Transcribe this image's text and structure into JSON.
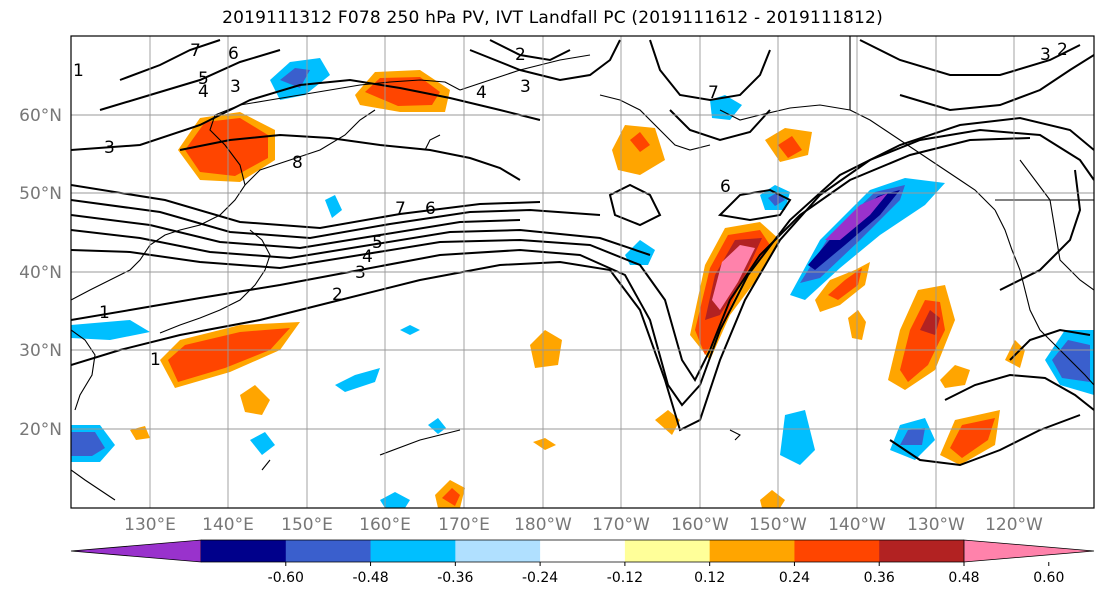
{
  "title": "2019111312 F078 250 hPa PV, IVT Landfall PC (2019111612 - 2019111812)",
  "map": {
    "lat_labels": [
      "60°N",
      "50°N",
      "40°N",
      "30°N",
      "20°N"
    ],
    "lon_labels": [
      "130°E",
      "140°E",
      "150°E",
      "160°E",
      "170°E",
      "180°W",
      "170°W",
      "160°W",
      "150°W",
      "140°W",
      "130°W",
      "120°W"
    ],
    "contour_labels": [
      "7",
      "6",
      "5",
      "4",
      "3",
      "3",
      "8",
      "7",
      "6",
      "5",
      "4",
      "3",
      "2",
      "1",
      "1",
      "4",
      "3",
      "2",
      "7",
      "6",
      "3",
      "2",
      "1"
    ]
  },
  "colorbar": {
    "colors": [
      "#9932cc",
      "#00008b",
      "#3a5fcd",
      "#00bfff",
      "#b0e0ff",
      "#ffffff",
      "#ffff99",
      "#ffa500",
      "#ff4500",
      "#b22222",
      "#ff82ab"
    ],
    "tick_labels": [
      "-0.60",
      "-0.48",
      "-0.36",
      "-0.24",
      "-0.12",
      "0.12",
      "0.24",
      "0.36",
      "0.48",
      "0.60"
    ]
  }
}
